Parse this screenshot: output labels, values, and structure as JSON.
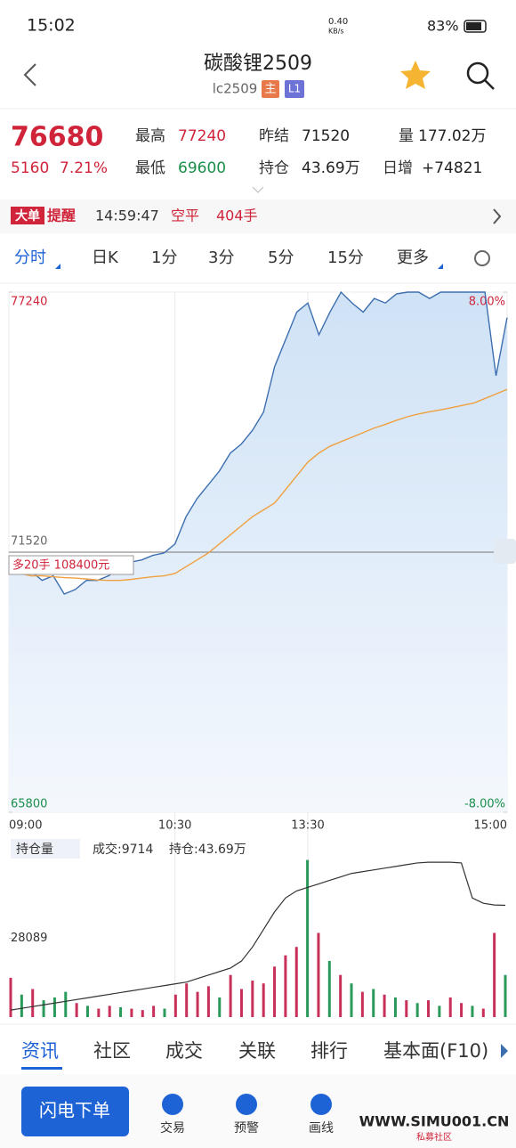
{
  "status_bar": {
    "time": "15:02",
    "speed": "0.40",
    "speed_unit": "KB/s",
    "battery": "83%"
  },
  "header": {
    "title": "碳酸锂2509",
    "code": "lc2509",
    "badge_main": "主",
    "badge_level": "L1"
  },
  "quote": {
    "price": "76680",
    "change": "5160",
    "change_pct": "7.21%",
    "items": [
      {
        "label": "最高",
        "value": "77240"
      },
      {
        "label": "最低",
        "value": "69600"
      },
      {
        "label": "昨结",
        "value": "71520"
      },
      {
        "label": "持仓",
        "value": "43.69万"
      },
      {
        "label": "量",
        "value": "177.02万"
      },
      {
        "label": "日增",
        "value": "+74821"
      }
    ]
  },
  "alert": {
    "tag1": "大单",
    "tag2": "提醒",
    "time": "14:59:47",
    "action": "空平",
    "amount": "404手"
  },
  "period_tabs": [
    "分时",
    "日K",
    "1分",
    "3分",
    "5分",
    "15分",
    "更多"
  ],
  "crosshair_label": "多20手  108400元",
  "volume_header": {
    "selector": "持仓量",
    "volume": "成交:9714",
    "open_interest": "持仓:43.69万"
  },
  "bottom_tabs": [
    "资讯",
    "社区",
    "成交",
    "关联",
    "排行",
    "基本面(F10)"
  ],
  "toolbar": {
    "order": "闪电下单",
    "items": [
      "交易",
      "预警",
      "画线"
    ]
  },
  "watermark": {
    "url": "WWW.SIMU001.CN",
    "name": "私募社区"
  },
  "chart_data": [
    {
      "type": "line",
      "x": [
        0,
        5,
        10,
        15,
        20,
        25,
        30,
        35,
        40,
        45,
        50,
        55,
        60,
        65,
        70,
        75,
        80,
        85,
        90,
        95,
        100,
        105,
        110,
        115,
        120,
        125,
        130,
        135,
        140,
        145,
        150,
        155,
        160,
        165,
        170,
        175,
        180,
        185,
        190,
        195,
        200,
        205,
        210,
        215,
        220,
        225
      ],
      "xlim": [
        0,
        225
      ],
      "xticks": [
        {
          "value": 0,
          "label": "09:00"
        },
        {
          "value": 75,
          "label": "10:30"
        },
        {
          "value": 135,
          "label": "13:30"
        },
        {
          "value": 225,
          "label": "15:00"
        }
      ],
      "ylim": [
        65800,
        77240
      ],
      "yticks": [
        77240,
        71520,
        65800
      ],
      "y2lim": [
        -8,
        8
      ],
      "y2ticks": [
        {
          "value": 8,
          "label": "8.00%"
        },
        {
          "value": -8,
          "label": "-8.00%"
        }
      ],
      "series": [
        {
          "color": "#3d6fb0",
          "values": [
            71300,
            71400,
            71100,
            70900,
            71000,
            70600,
            70700,
            70900,
            70900,
            71000,
            71150,
            71300,
            71350,
            71450,
            71500,
            71700,
            72300,
            72700,
            73000,
            73300,
            73700,
            73900,
            74200,
            74600,
            75600,
            76200,
            76800,
            77000,
            76300,
            76800,
            77240,
            77000,
            76800,
            77100,
            77000,
            77200,
            77240,
            77240,
            77100,
            77240,
            77240,
            77240,
            77240,
            77240,
            75400,
            76680
          ]
        },
        {
          "color": "#f0a040",
          "values": [
            71100,
            71050,
            71000,
            71000,
            70980,
            70960,
            70950,
            70930,
            70910,
            70900,
            70900,
            70920,
            70950,
            70980,
            71000,
            71050,
            71200,
            71350,
            71500,
            71700,
            71900,
            72100,
            72300,
            72450,
            72600,
            72900,
            73200,
            73500,
            73700,
            73850,
            73950,
            74050,
            74150,
            74250,
            74330,
            74420,
            74500,
            74560,
            74610,
            74650,
            74700,
            74750,
            74800,
            74900,
            75000,
            75100
          ]
        }
      ]
    },
    {
      "type": "bar",
      "x": [
        0,
        5,
        10,
        15,
        20,
        25,
        30,
        35,
        40,
        45,
        50,
        55,
        60,
        65,
        70,
        75,
        80,
        85,
        90,
        95,
        100,
        105,
        110,
        115,
        120,
        125,
        130,
        135,
        140,
        145,
        150,
        155,
        160,
        165,
        170,
        175,
        180,
        185,
        190,
        195,
        200,
        205,
        210,
        215,
        220,
        225
      ],
      "xlim": [
        0,
        225
      ],
      "ylim": [
        0,
        56178
      ],
      "yticks": [
        28089
      ],
      "y2lim": [
        40.5,
        45
      ],
      "series": [
        {
          "color": "#c8305a",
          "values": [
            14000,
            null,
            10000,
            null,
            null,
            null,
            5000,
            null,
            3000,
            4000,
            null,
            3000,
            2500,
            4000,
            null,
            8000,
            12000,
            9000,
            11000,
            null,
            15000,
            10000,
            13000,
            12000,
            18000,
            22000,
            25000,
            null,
            30000,
            null,
            15000,
            null,
            9000,
            null,
            8000,
            null,
            6000,
            null,
            6000,
            null,
            7000,
            5000,
            null,
            3000,
            30000,
            null
          ]
        },
        {
          "color": "#2a9a5a",
          "values": [
            null,
            8000,
            null,
            6000,
            7000,
            9000,
            null,
            4000,
            null,
            null,
            3500,
            null,
            null,
            null,
            3000,
            null,
            null,
            null,
            null,
            7000,
            null,
            null,
            null,
            null,
            null,
            null,
            null,
            56000,
            null,
            20000,
            null,
            12000,
            null,
            10000,
            null,
            7000,
            null,
            5000,
            null,
            4000,
            null,
            null,
            4000,
            null,
            null,
            15000
          ]
        },
        {
          "color": "#333333",
          "axis": "y2",
          "values": [
            40.7,
            40.75,
            40.8,
            40.85,
            40.9,
            40.95,
            41.0,
            41.05,
            41.1,
            41.15,
            41.2,
            41.25,
            41.3,
            41.35,
            41.4,
            41.45,
            41.5,
            41.6,
            41.7,
            41.8,
            41.9,
            42.1,
            42.5,
            43.0,
            43.5,
            43.9,
            44.1,
            44.2,
            44.3,
            44.4,
            44.5,
            44.6,
            44.65,
            44.7,
            44.75,
            44.8,
            44.85,
            44.9,
            44.92,
            44.92,
            44.92,
            44.9,
            43.9,
            43.75,
            43.7,
            43.69
          ]
        }
      ]
    }
  ]
}
